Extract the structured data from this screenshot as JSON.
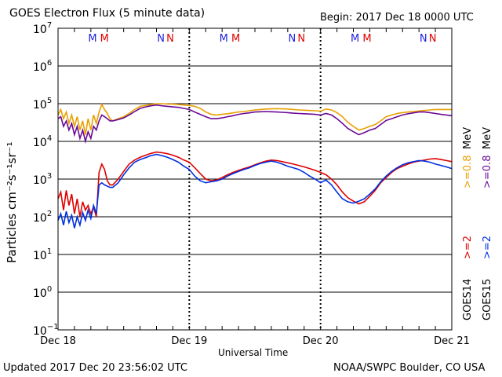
{
  "header": {
    "title": "GOES Electron Flux (5 minute data)",
    "begin": "Begin: 2017 Dec 18 0000 UTC"
  },
  "footer": {
    "updated": "Updated 2017 Dec 20 23:56:02 UTC",
    "credit": "NOAA/SWPC Boulder, CO USA"
  },
  "colors": {
    "goes14_high": "#e8a000",
    "goes15_high": "#6a0a96",
    "goes14_low": "#e00000",
    "goes15_low": "#0030e0",
    "M_blue": "#2020e0",
    "M_red": "#e00000",
    "N_blue": "#2020e0",
    "N_red": "#e00000"
  },
  "chart_data": {
    "type": "line",
    "title": "GOES Electron Flux (5 minute data)",
    "xlabel": "Universal Time",
    "ylabel": "Particles cm⁻²s⁻¹sr⁻¹",
    "y_scale": "log",
    "ylim": [
      0.1,
      10000000
    ],
    "y_ticks": [
      {
        "base": "10",
        "exp": "7"
      },
      {
        "base": "10",
        "exp": "6"
      },
      {
        "base": "10",
        "exp": "5"
      },
      {
        "base": "10",
        "exp": "4"
      },
      {
        "base": "10",
        "exp": "3"
      },
      {
        "base": "10",
        "exp": "2"
      },
      {
        "base": "10",
        "exp": "1"
      },
      {
        "base": "10",
        "exp": "0"
      },
      {
        "base": "10",
        "exp": "−1"
      }
    ],
    "xlim": [
      0,
      72
    ],
    "x_unit": "hours since 2017 Dec 18 0000 UTC",
    "x_tick_labels": [
      "Dec 18",
      "Dec 19",
      "Dec 20",
      "Dec 21"
    ],
    "x_tick_hours": [
      0,
      24,
      48,
      72
    ],
    "dashed_threshold": 1000,
    "markers": [
      {
        "hour": 6.3,
        "letter": "M",
        "color": "M_blue"
      },
      {
        "hour": 8.5,
        "letter": "M",
        "color": "M_red"
      },
      {
        "hour": 18.8,
        "letter": "N",
        "color": "N_blue"
      },
      {
        "hour": 20.5,
        "letter": "N",
        "color": "N_red"
      },
      {
        "hour": 30.3,
        "letter": "M",
        "color": "M_blue"
      },
      {
        "hour": 32.5,
        "letter": "M",
        "color": "M_red"
      },
      {
        "hour": 42.8,
        "letter": "N",
        "color": "N_blue"
      },
      {
        "hour": 44.5,
        "letter": "N",
        "color": "N_red"
      },
      {
        "hour": 54.3,
        "letter": "M",
        "color": "M_blue"
      },
      {
        "hour": 56.5,
        "letter": "M",
        "color": "M_red"
      },
      {
        "hour": 66.8,
        "letter": "N",
        "color": "N_blue"
      },
      {
        "hour": 68.5,
        "letter": "N",
        "color": "N_red"
      }
    ],
    "legend": {
      "goes14_label": "GOES14",
      "goes15_label": "GOES15",
      "goes14_low": ">=2",
      "goes15_low": ">=2",
      "goes14_high": ">=0.8",
      "goes15_high": ">=0.8",
      "unit_14": "MeV",
      "unit_15": "MeV"
    },
    "series": [
      {
        "name": "GOES14 >=0.8 MeV",
        "color": "goes14_high",
        "x": [
          0,
          0.5,
          1,
          1.5,
          2,
          2.5,
          3,
          3.5,
          4,
          4.5,
          5,
          5.5,
          6,
          6.5,
          7,
          7.5,
          8,
          8.5,
          9,
          9.5,
          10,
          11,
          12,
          13,
          14,
          15,
          16,
          17,
          18,
          19,
          20,
          21,
          22,
          23,
          24,
          25,
          26,
          27,
          28,
          29,
          30,
          31,
          32,
          33,
          34,
          35,
          36,
          37,
          38,
          39,
          40,
          41,
          42,
          43,
          44,
          45,
          46,
          47,
          48,
          49,
          50,
          51,
          52,
          53,
          54,
          55,
          56,
          57,
          58,
          59,
          60,
          61,
          62,
          63,
          64,
          65,
          66,
          67,
          68,
          69,
          70,
          71,
          72
        ],
        "y": [
          50000,
          70000,
          40000,
          60000,
          30000,
          50000,
          25000,
          45000,
          20000,
          35000,
          15000,
          40000,
          20000,
          50000,
          30000,
          60000,
          95000,
          70000,
          55000,
          40000,
          35000,
          40000,
          45000,
          55000,
          70000,
          85000,
          90000,
          95000,
          100000,
          100000,
          98000,
          97000,
          95000,
          92000,
          90000,
          85000,
          75000,
          60000,
          52000,
          50000,
          52000,
          54000,
          57000,
          60000,
          62000,
          65000,
          68000,
          70000,
          72000,
          73000,
          74000,
          73000,
          72000,
          70000,
          68000,
          67000,
          66000,
          65000,
          63000,
          72000,
          68000,
          58000,
          45000,
          32000,
          25000,
          20000,
          22000,
          25000,
          28000,
          35000,
          45000,
          50000,
          55000,
          58000,
          60000,
          62000,
          64000,
          66000,
          68000,
          70000,
          70000,
          70000,
          70000
        ]
      },
      {
        "name": "GOES15 >=0.8 MeV",
        "color": "goes15_high",
        "x": [
          0,
          0.5,
          1,
          1.5,
          2,
          2.5,
          3,
          3.5,
          4,
          4.5,
          5,
          5.5,
          6,
          6.5,
          7,
          7.5,
          8,
          8.5,
          9,
          9.5,
          10,
          11,
          12,
          13,
          14,
          15,
          16,
          17,
          18,
          19,
          20,
          21,
          22,
          23,
          24,
          25,
          26,
          27,
          28,
          29,
          30,
          31,
          32,
          33,
          34,
          35,
          36,
          37,
          38,
          39,
          40,
          41,
          42,
          43,
          44,
          45,
          46,
          47,
          48,
          49,
          50,
          51,
          52,
          53,
          54,
          55,
          56,
          57,
          58,
          59,
          60,
          61,
          62,
          63,
          64,
          65,
          66,
          67,
          68,
          69,
          70,
          71,
          72
        ],
        "y": [
          40000,
          45000,
          25000,
          35000,
          20000,
          30000,
          15000,
          25000,
          12000,
          20000,
          10000,
          18000,
          12000,
          25000,
          20000,
          35000,
          50000,
          45000,
          40000,
          35000,
          35000,
          38000,
          42000,
          50000,
          62000,
          75000,
          82000,
          88000,
          92000,
          88000,
          85000,
          82000,
          80000,
          75000,
          70000,
          60000,
          52000,
          45000,
          40000,
          40000,
          42000,
          45000,
          48000,
          52000,
          55000,
          57000,
          60000,
          61000,
          62000,
          61000,
          60000,
          59000,
          58000,
          56000,
          55000,
          54000,
          53000,
          52000,
          50000,
          55000,
          50000,
          40000,
          30000,
          22000,
          18000,
          15000,
          17000,
          20000,
          22000,
          28000,
          36000,
          40000,
          45000,
          50000,
          54000,
          57000,
          60000,
          60000,
          58000,
          55000,
          52000,
          50000,
          48000
        ]
      },
      {
        "name": "GOES14 >=2 MeV",
        "color": "goes14_low",
        "x": [
          0,
          0.5,
          1,
          1.5,
          2,
          2.5,
          3,
          3.5,
          4,
          4.5,
          5,
          5.5,
          6,
          6.5,
          7,
          7.5,
          8,
          8.5,
          9,
          9.5,
          10,
          11,
          12,
          13,
          14,
          15,
          16,
          17,
          18,
          19,
          20,
          21,
          22,
          23,
          24,
          25,
          26,
          27,
          28,
          29,
          30,
          31,
          32,
          33,
          34,
          35,
          36,
          37,
          38,
          39,
          40,
          41,
          42,
          43,
          44,
          45,
          46,
          47,
          48,
          49,
          50,
          51,
          52,
          53,
          54,
          55,
          56,
          57,
          58,
          59,
          60,
          61,
          62,
          63,
          64,
          65,
          66,
          67,
          68,
          69,
          70,
          71,
          72
        ],
        "y": [
          300,
          450,
          150,
          500,
          200,
          400,
          120,
          300,
          100,
          250,
          150,
          200,
          120,
          180,
          100,
          1500,
          2500,
          1800,
          900,
          700,
          700,
          1000,
          1600,
          2500,
          3200,
          3800,
          4300,
          4800,
          5200,
          5000,
          4700,
          4300,
          3800,
          3200,
          2800,
          2000,
          1400,
          1000,
          900,
          950,
          1100,
          1300,
          1500,
          1700,
          1900,
          2100,
          2400,
          2700,
          3000,
          3200,
          3100,
          2900,
          2700,
          2500,
          2300,
          2100,
          1900,
          1700,
          1500,
          1300,
          1000,
          700,
          450,
          320,
          260,
          220,
          250,
          350,
          500,
          800,
          1100,
          1500,
          1900,
          2200,
          2500,
          2800,
          3000,
          3200,
          3400,
          3500,
          3300,
          3100,
          2900
        ]
      },
      {
        "name": "GOES15 >=2 MeV",
        "color": "goes15_low",
        "x": [
          0,
          0.5,
          1,
          1.5,
          2,
          2.5,
          3,
          3.5,
          4,
          4.5,
          5,
          5.5,
          6,
          6.5,
          7,
          7.5,
          8,
          8.5,
          9,
          9.5,
          10,
          11,
          12,
          13,
          14,
          15,
          16,
          17,
          18,
          19,
          20,
          21,
          22,
          23,
          24,
          25,
          26,
          27,
          28,
          29,
          30,
          31,
          32,
          33,
          34,
          35,
          36,
          37,
          38,
          39,
          40,
          41,
          42,
          43,
          44,
          45,
          46,
          47,
          48,
          49,
          50,
          51,
          52,
          53,
          54,
          55,
          56,
          57,
          58,
          59,
          60,
          61,
          62,
          63,
          64,
          65,
          66,
          67,
          68,
          69,
          70,
          71,
          72
        ],
        "y": [
          80,
          120,
          60,
          140,
          70,
          110,
          50,
          100,
          60,
          130,
          80,
          150,
          90,
          200,
          120,
          700,
          800,
          700,
          650,
          600,
          600,
          800,
          1300,
          2000,
          2800,
          3300,
          3700,
          4200,
          4500,
          4200,
          3800,
          3300,
          2800,
          2200,
          1800,
          1200,
          900,
          800,
          850,
          900,
          1000,
          1200,
          1400,
          1600,
          1800,
          2000,
          2300,
          2600,
          2800,
          3000,
          2800,
          2500,
          2200,
          2000,
          1800,
          1500,
          1200,
          1000,
          800,
          950,
          700,
          450,
          300,
          250,
          230,
          260,
          300,
          400,
          550,
          850,
          1200,
          1600,
          2000,
          2400,
          2700,
          2900,
          3100,
          3000,
          2800,
          2500,
          2300,
          2100,
          1900
        ]
      }
    ]
  }
}
